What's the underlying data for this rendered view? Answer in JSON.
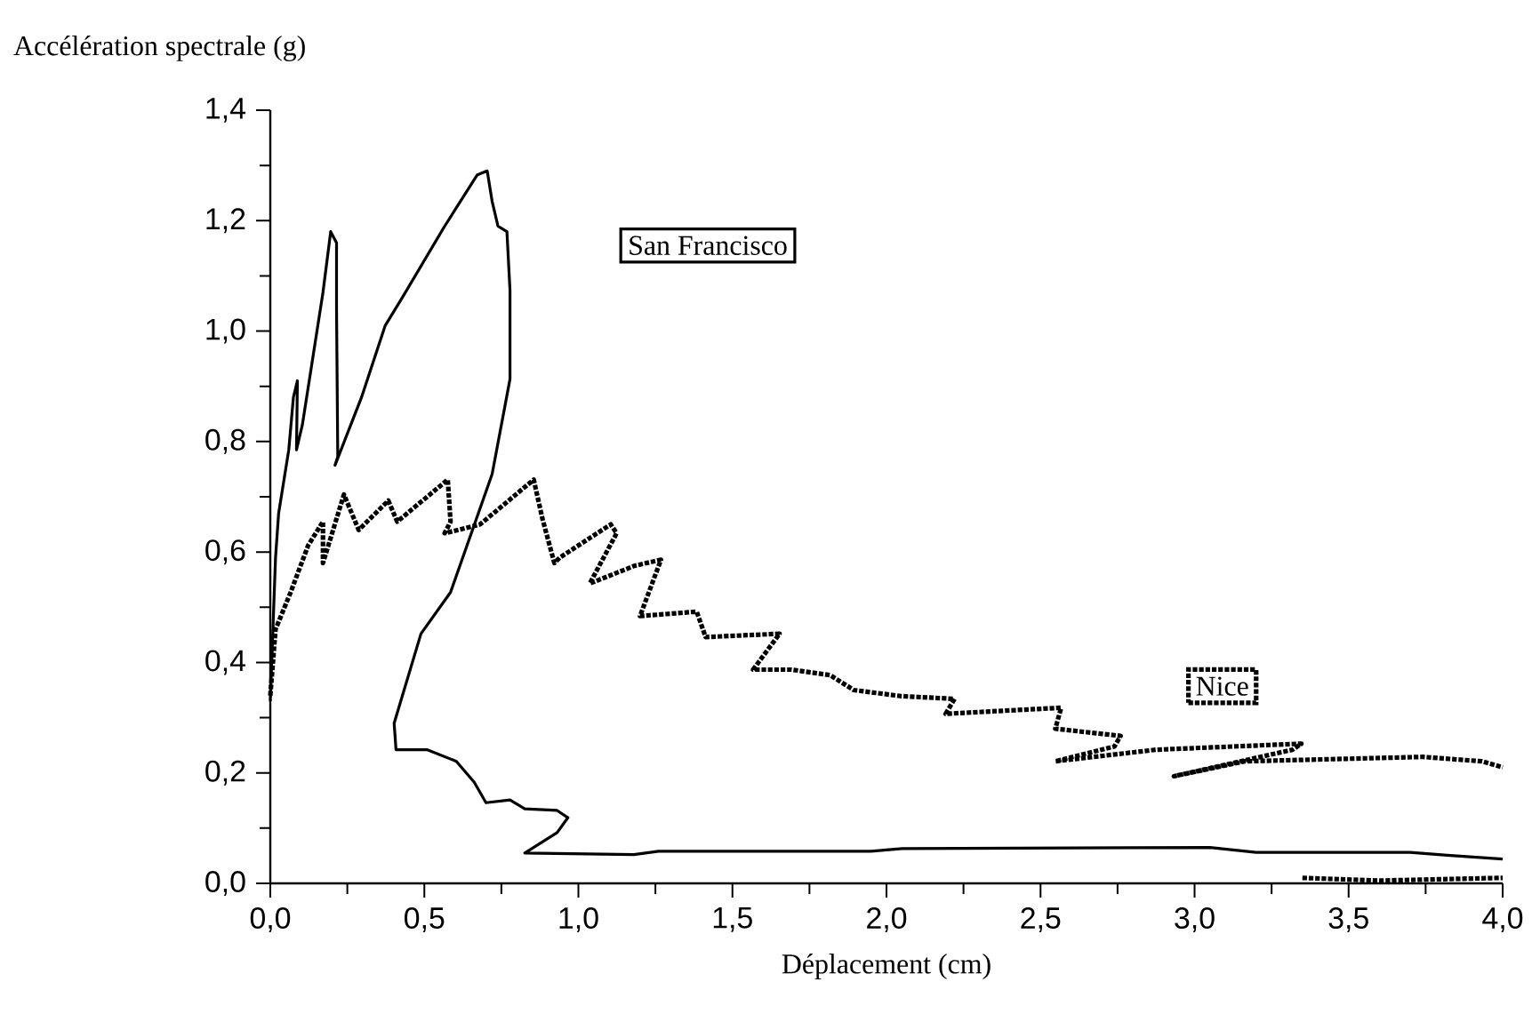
{
  "chart_data": {
    "type": "line",
    "xlabel": "Déplacement (cm)",
    "ylabel": "Accélération spectrale (g)",
    "xlim": [
      0,
      4
    ],
    "ylim": [
      0,
      1.4
    ],
    "xticks": [
      {
        "value": 0,
        "label": "0,0"
      },
      {
        "value": 0.5,
        "label": "0,5"
      },
      {
        "value": 1,
        "label": "1,0"
      },
      {
        "value": 1.5,
        "label": "1,5"
      },
      {
        "value": 2,
        "label": "2,0"
      },
      {
        "value": 2.5,
        "label": "2,5"
      },
      {
        "value": 3,
        "label": "3,0"
      },
      {
        "value": 3.5,
        "label": "3,5"
      },
      {
        "value": 4,
        "label": "4,0"
      }
    ],
    "yticks": [
      {
        "value": 0,
        "label": "0,0"
      },
      {
        "value": 0.2,
        "label": "0,2"
      },
      {
        "value": 0.4,
        "label": "0,4"
      },
      {
        "value": 0.6,
        "label": "0,6"
      },
      {
        "value": 0.8,
        "label": "0,8"
      },
      {
        "value": 1,
        "label": "1,0"
      },
      {
        "value": 1.2,
        "label": "1,2"
      },
      {
        "value": 1.4,
        "label": "1,4"
      }
    ],
    "grid": false,
    "legend": false,
    "series": [
      {
        "name": "San Francisco",
        "color": "#000000",
        "line_style": "solid",
        "x": [
          0,
          0.017,
          0.027,
          0.06,
          0.075,
          0.088,
          0.085,
          0.104,
          0.171,
          0.196,
          0.215,
          0.215,
          0.219,
          0.21,
          0.296,
          0.373,
          0.431,
          0.566,
          0.672,
          0.704,
          0.72,
          0.739,
          0.768,
          0.778,
          0.778,
          0.72,
          0.585,
          0.489,
          0.402,
          0.408,
          0.508,
          0.604,
          0.662,
          0.7,
          0.778,
          0.826,
          0.931,
          0.966,
          0.931,
          0.826,
          1.18,
          1.26,
          1.95,
          2.05,
          3.05,
          3.2,
          3.7,
          3.82,
          4.0
        ],
        "values": [
          0.33,
          0.59,
          0.67,
          0.785,
          0.88,
          0.91,
          0.785,
          0.83,
          1.07,
          1.18,
          1.16,
          1.04,
          0.773,
          0.757,
          0.88,
          1.01,
          1.063,
          1.19,
          1.283,
          1.29,
          1.235,
          1.19,
          1.18,
          1.074,
          0.913,
          0.741,
          0.527,
          0.452,
          0.29,
          0.242,
          0.242,
          0.221,
          0.183,
          0.146,
          0.151,
          0.135,
          0.132,
          0.119,
          0.092,
          0.055,
          0.052,
          0.058,
          0.058,
          0.063,
          0.065,
          0.056,
          0.056,
          0.051,
          0.044
        ]
      },
      {
        "name": "Nice",
        "color": "#000000",
        "line_style": "dotted",
        "x": [
          0,
          0.017,
          0.066,
          0.123,
          0.171,
          0.171,
          0.239,
          0.287,
          0.383,
          0.412,
          0.576,
          0.585,
          0.566,
          0.681,
          0.855,
          0.883,
          0.922,
          0.94,
          1.105,
          1.124,
          1.037,
          1.182,
          1.268,
          1.2,
          1.384,
          1.413,
          1.653,
          1.567,
          1.692,
          1.817,
          1.894,
          2.048,
          2.221,
          2.192,
          2.567,
          2.548,
          2.76,
          2.74,
          2.548,
          2.875,
          3.347,
          3.318,
          2.933,
          3.164,
          3.741,
          3.933,
          4.0,
          null,
          3.35,
          3.6,
          4.0
        ],
        "values": [
          0.34,
          0.46,
          0.527,
          0.612,
          0.655,
          0.58,
          0.704,
          0.64,
          0.693,
          0.655,
          0.731,
          0.655,
          0.634,
          0.65,
          0.731,
          0.661,
          0.58,
          0.59,
          0.65,
          0.634,
          0.543,
          0.575,
          0.586,
          0.484,
          0.492,
          0.446,
          0.452,
          0.387,
          0.387,
          0.377,
          0.35,
          0.339,
          0.334,
          0.307,
          0.318,
          0.28,
          0.267,
          0.248,
          0.221,
          0.242,
          0.253,
          0.242,
          0.194,
          0.221,
          0.229,
          0.221,
          0.21,
          null,
          0.01,
          0.005,
          0.01
        ]
      }
    ]
  }
}
